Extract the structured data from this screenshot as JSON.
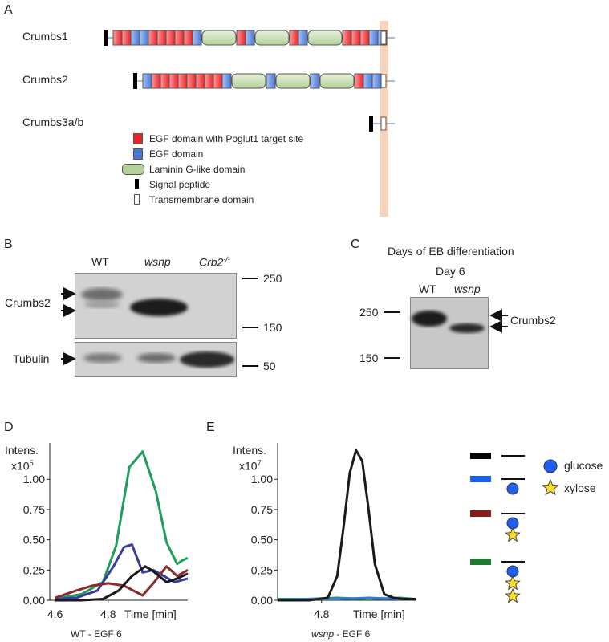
{
  "panel_letters": {
    "a": "A",
    "b": "B",
    "c": "C",
    "d": "D",
    "e": "E"
  },
  "panel_a": {
    "proteins": [
      {
        "name": "Crumbs1"
      },
      {
        "name": "Crumbs2"
      },
      {
        "name": "Crumbs3a/b"
      }
    ],
    "legend": [
      {
        "label": "EGF domain with Poglut1 target site",
        "color": "#e8232a"
      },
      {
        "label": "EGF domain",
        "color": "#4a78d8"
      },
      {
        "label": "Laminin G-like domain",
        "color": "#b5d19a"
      },
      {
        "label": "Signal peptide",
        "color": "#000000"
      },
      {
        "label": "Transmembrane domain",
        "color": "#ffffff"
      }
    ]
  },
  "panel_b": {
    "lanes": [
      "WT",
      "wsnp",
      "Crb2"
    ],
    "lane3_superscript": "-/-",
    "rows": [
      "Crumbs2",
      "Tubulin"
    ],
    "markers": [
      "250",
      "150",
      "50"
    ]
  },
  "panel_c": {
    "title": "Days of EB differentiation",
    "subtitle": "Day 6",
    "lanes": [
      "WT",
      "wsnp"
    ],
    "markers": [
      "250",
      "150"
    ],
    "band_label": "Crumbs2"
  },
  "chart_data": [
    {
      "type": "line",
      "panel": "D",
      "title": "WT - EGF 6",
      "ylabel_line1": "Intens.",
      "ylabel_base": "x10",
      "ylabel_exp": "5",
      "xlabel": "Time [min]",
      "xlim": [
        4.58,
        5.1
      ],
      "ylim": [
        0,
        1.3
      ],
      "yticks": [
        "0.00",
        "0.25",
        "0.50",
        "0.75",
        "1.00"
      ],
      "xticks": [
        "4.6",
        "4.8"
      ],
      "series": [
        {
          "color": "#1f9e5a",
          "x": [
            4.62,
            4.7,
            4.78,
            4.83,
            4.88,
            4.93,
            4.98,
            5.02,
            5.06,
            5.08,
            5.1
          ],
          "y": [
            0.02,
            0.05,
            0.15,
            0.45,
            1.1,
            1.23,
            0.9,
            0.48,
            0.3,
            0.33,
            0.35
          ]
        },
        {
          "color": "#3a3aa0",
          "x": [
            4.6,
            4.68,
            4.76,
            4.82,
            4.86,
            4.89,
            4.93,
            4.97,
            5.01,
            5.05,
            5.1
          ],
          "y": [
            0.01,
            0.02,
            0.08,
            0.28,
            0.44,
            0.46,
            0.23,
            0.25,
            0.2,
            0.15,
            0.18
          ]
        },
        {
          "color": "#8b2a2a",
          "x": [
            4.6,
            4.68,
            4.74,
            4.8,
            4.86,
            4.93,
            4.97,
            5.02,
            5.06,
            5.1
          ],
          "y": [
            0.02,
            0.08,
            0.12,
            0.14,
            0.12,
            0.04,
            0.14,
            0.28,
            0.2,
            0.25
          ]
        },
        {
          "color": "#1a1a1a",
          "x": [
            4.6,
            4.7,
            4.78,
            4.84,
            4.89,
            4.94,
            4.97,
            5.02,
            5.06,
            5.1
          ],
          "y": [
            0.0,
            0.0,
            0.01,
            0.08,
            0.2,
            0.28,
            0.24,
            0.15,
            0.18,
            0.22
          ]
        }
      ]
    },
    {
      "type": "line",
      "panel": "E",
      "title": "wsnp - EGF 6",
      "title_italic_part": "wsnp",
      "title_rest": " - EGF 6",
      "ylabel_line1": "Intens.",
      "ylabel_base": "x10",
      "ylabel_exp": "7",
      "xlabel": "Time [min]",
      "xlim": [
        4.66,
        5.1
      ],
      "ylim": [
        0,
        1.3
      ],
      "yticks": [
        "0.00",
        "0.25",
        "0.50",
        "0.75",
        "1.00"
      ],
      "xticks": [
        "4.8"
      ],
      "series": [
        {
          "color": "#1f9e5a",
          "x": [
            4.66,
            4.75,
            4.85,
            4.95,
            5.05,
            5.1
          ],
          "y": [
            0.01,
            0.01,
            0.02,
            0.01,
            0.02,
            0.01
          ]
        },
        {
          "color": "#3a7ad0",
          "x": [
            4.66,
            4.75,
            4.85,
            4.95,
            5.05,
            5.1
          ],
          "y": [
            0.0,
            0.01,
            0.01,
            0.02,
            0.01,
            0.01
          ]
        },
        {
          "color": "#1a1a1a",
          "x": [
            4.66,
            4.76,
            4.82,
            4.85,
            4.87,
            4.89,
            4.91,
            4.93,
            4.95,
            4.97,
            5.0,
            5.03,
            5.06,
            5.1
          ],
          "y": [
            0.0,
            0.0,
            0.02,
            0.2,
            0.6,
            1.05,
            1.24,
            1.15,
            0.75,
            0.3,
            0.05,
            0.02,
            0.01,
            0.01
          ]
        }
      ]
    }
  ],
  "glycan_legend": {
    "glucose_label": "glucose",
    "xylose_label": "xylose",
    "glucose_color": "#1f5ff0",
    "xylose_color": "#f5e02a",
    "rows": [
      {
        "color": "#000000",
        "glucose": 0,
        "xylose": 0
      },
      {
        "color": "#1f5ff0",
        "glucose": 1,
        "xylose": 0
      },
      {
        "color": "#8b1a1a",
        "glucose": 1,
        "xylose": 1
      },
      {
        "color": "#1e7a2e",
        "glucose": 1,
        "xylose": 2
      }
    ]
  }
}
